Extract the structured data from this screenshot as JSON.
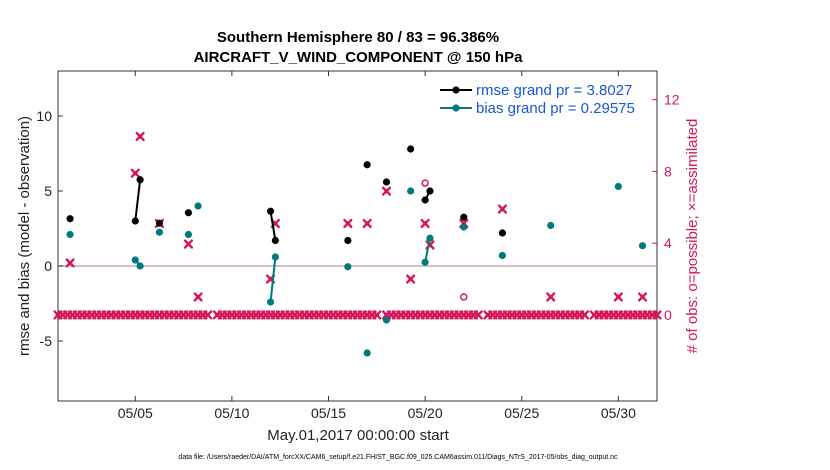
{
  "chart_data": {
    "type": "scatter",
    "title": [
      "Southern Hemisphere 80 / 83 = 96.386%",
      "AIRCRAFT_V_WIND_COMPONENT @ 150 hPa"
    ],
    "xlabel": "May.01,2017 00:00:00 start",
    "ylabel": "rmse and bias (model - observation)",
    "ylabel_right": "# of obs: o=possible; ×=assimilated",
    "footnote": "data file: /Users/raeder/DAI/ATM_forcXX/CAM6_setup/f.e21.FHIST_BGC.f09_025.CAM6assim.011/Diags_NTrS_2017-05/obs_diag_output.nc",
    "xlim": [
      1,
      32
    ],
    "ylim": [
      -9,
      13
    ],
    "ylim_right": [
      -4.8,
      13.6
    ],
    "x_ticks": [
      5,
      10,
      15,
      20,
      25,
      30
    ],
    "x_tick_labels": [
      "05/05",
      "05/10",
      "05/15",
      "05/20",
      "05/25",
      "05/30"
    ],
    "y_ticks": [
      -5,
      0,
      5,
      10
    ],
    "y_tick_labels": [
      "-5",
      "0",
      "5",
      "10"
    ],
    "y_ticks_right": [
      0,
      4,
      8,
      12
    ],
    "y_tick_labels_right": [
      "0",
      "4",
      "8",
      "12"
    ],
    "zero_line": 0,
    "grid": false,
    "legend_position": "top-right",
    "colors": {
      "rmse": "#000000",
      "bias": "#007a7a",
      "obs": "#d6175c",
      "zero_line": "#c8a8b4",
      "legend_text": "#1a56d6"
    },
    "series": [
      {
        "name": "rmse grand pr = 3.8027",
        "axis": "left",
        "style": "line-marker",
        "points": [
          [
            1.625,
            3.15
          ],
          [
            5,
            3.0
          ],
          [
            5.25,
            5.75
          ],
          [
            6.25,
            2.85
          ],
          [
            7.75,
            3.55
          ],
          [
            12,
            3.65
          ],
          [
            12.25,
            1.7
          ],
          [
            16,
            1.7
          ],
          [
            17,
            6.75
          ],
          [
            18,
            5.6
          ],
          [
            19.25,
            7.8
          ],
          [
            20,
            4.4
          ],
          [
            20.25,
            5.0
          ],
          [
            22,
            3.25
          ],
          [
            24,
            2.2
          ]
        ],
        "segments": [
          [
            [
              5,
              3.0
            ],
            [
              5.25,
              5.75
            ]
          ],
          [
            [
              12,
              3.65
            ],
            [
              12.25,
              1.7
            ]
          ],
          [
            [
              20,
              4.4
            ],
            [
              20.25,
              5.0
            ]
          ]
        ]
      },
      {
        "name": "bias grand pr = 0.29575",
        "axis": "left",
        "style": "line-marker",
        "points": [
          [
            1.625,
            2.1
          ],
          [
            5,
            0.4
          ],
          [
            5.25,
            0.0
          ],
          [
            6.25,
            2.25
          ],
          [
            7.75,
            2.1
          ],
          [
            8.25,
            4.0
          ],
          [
            12,
            -2.4
          ],
          [
            12.25,
            0.6
          ],
          [
            16,
            -0.05
          ],
          [
            17,
            -5.8
          ],
          [
            18,
            -3.6
          ],
          [
            19.25,
            5.0
          ],
          [
            20,
            0.25
          ],
          [
            20.25,
            1.85
          ],
          [
            22,
            2.6
          ],
          [
            24,
            0.7
          ],
          [
            26.5,
            2.7
          ],
          [
            30,
            5.3
          ],
          [
            31.25,
            1.35
          ]
        ],
        "segments": [
          [
            [
              5,
              0.4
            ],
            [
              5.25,
              0.0
            ]
          ],
          [
            [
              12,
              -2.4
            ],
            [
              12.25,
              0.6
            ]
          ],
          [
            [
              20,
              0.25
            ],
            [
              20.25,
              1.85
            ]
          ]
        ]
      },
      {
        "name": "",
        "axis": "right",
        "style": "marker-x",
        "points": [
          [
            1.625,
            2.9
          ],
          [
            5,
            7.9
          ],
          [
            5.25,
            9.95
          ],
          [
            6.25,
            5.1
          ],
          [
            7.75,
            3.95
          ],
          [
            8.25,
            1.0
          ],
          [
            12,
            2.0
          ],
          [
            12.25,
            5.1
          ],
          [
            16,
            5.1
          ],
          [
            17,
            5.1
          ],
          [
            18,
            6.9
          ],
          [
            19.25,
            2.0
          ],
          [
            20,
            5.1
          ],
          [
            20.25,
            3.9
          ],
          [
            22,
            5.1
          ],
          [
            24,
            5.9
          ],
          [
            26.5,
            1.0
          ],
          [
            30,
            1.0
          ],
          [
            31.25,
            1.0
          ]
        ],
        "baseline_value": 0,
        "baseline_from": 1,
        "baseline_to": 32,
        "baseline_step": 0.25,
        "baseline_gaps": [
          [
            8.9,
            9.1
          ],
          [
            17.6,
            17.9
          ],
          [
            22.9,
            23.1
          ],
          [
            28.4,
            28.6
          ]
        ]
      },
      {
        "name": "",
        "axis": "right",
        "style": "marker-o",
        "points": [
          [
            20,
            7.35
          ],
          [
            22,
            1.0
          ]
        ]
      }
    ]
  }
}
